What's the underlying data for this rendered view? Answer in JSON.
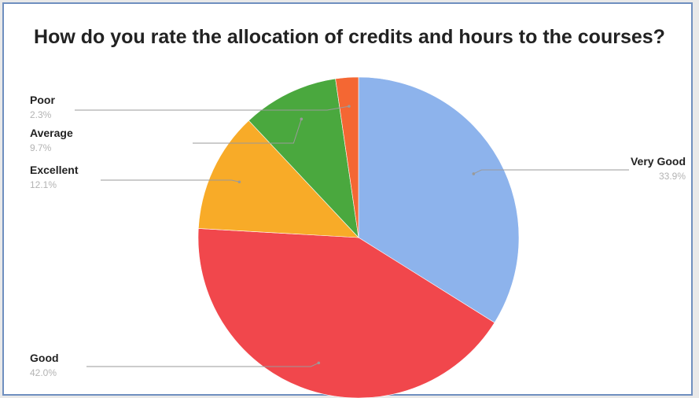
{
  "chart_data": {
    "type": "pie",
    "title": "How do you rate the allocation of credits and hours to the courses?",
    "start_angle_deg": 0,
    "direction": "clockwise",
    "slices": [
      {
        "label": "Very Good",
        "value": 33.9,
        "percent_label": "33.9%",
        "color": "#8db3ec"
      },
      {
        "label": "Good",
        "value": 42.0,
        "percent_label": "42.0%",
        "color": "#f1474c"
      },
      {
        "label": "Excellent",
        "value": 12.1,
        "percent_label": "12.1%",
        "color": "#f8ab28"
      },
      {
        "label": "Average",
        "value": 9.7,
        "percent_label": "9.7%",
        "color": "#4aa83e"
      },
      {
        "label": "Poor",
        "value": 2.3,
        "percent_label": "2.3%",
        "color": "#f46733"
      }
    ]
  }
}
